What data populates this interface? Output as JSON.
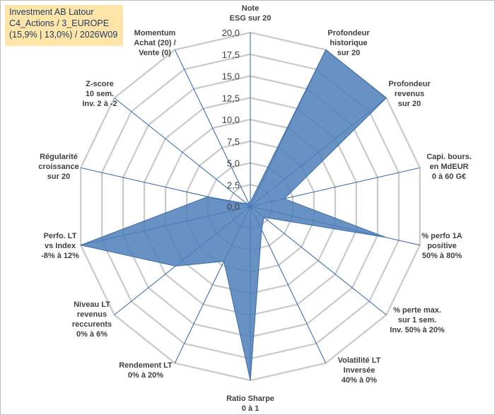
{
  "info_box": {
    "line1": "Investment AB Latour",
    "line2": "C4_Actions / 3_EUROPE",
    "line3": "(15,9% | 13,0%) / 2026W09"
  },
  "colors": {
    "fill": "#4f7fba",
    "grid": "#c9c9c9",
    "spoke": "#2f62b0",
    "text": "#404040"
  },
  "chart_data": {
    "type": "radar",
    "title": "",
    "rlim": [
      0,
      20
    ],
    "grid": true,
    "tick_labels": [
      "0,0",
      "2,5",
      "5,0",
      "7,5",
      "10,0",
      "12,5",
      "15,0",
      "17,5",
      "20,0"
    ],
    "axes": [
      [
        "Note",
        "ESG sur 20"
      ],
      [
        "Profondeur",
        "historique",
        "sur 20"
      ],
      [
        "Profondeur",
        "revenus",
        "sur 20"
      ],
      [
        "Capi. bours.",
        "en MdEUR",
        "0 à 60 G€"
      ],
      [
        "% perfo 1A",
        "positive",
        "50% à 80%"
      ],
      [
        "% perte max.",
        "sur 1 sem.",
        "Inv. 50% à 20%"
      ],
      [
        "Volatilité LT",
        "Inversée",
        "40% à 0%"
      ],
      [
        "Ratio Sharpe",
        "0 à 1"
      ],
      [
        "Rendement LT",
        "0% à 20%"
      ],
      [
        "Niveau LT",
        "revenus",
        "reccurents",
        "0% à 6%"
      ],
      [
        "Perfo. LT",
        "vs Index",
        "-8% à 12%"
      ],
      [
        "Régularité",
        "croissance",
        "sur 20"
      ],
      [
        "Z-score",
        "10 sem.",
        "Inv. 2 à -2"
      ],
      [
        "Momentum",
        "Achat (20) /",
        "Vente (0)"
      ]
    ],
    "values": [
      0.5,
      20,
      20,
      4,
      16,
      2,
      3,
      20,
      7,
      11,
      20,
      5,
      0.5,
      0.5
    ]
  }
}
